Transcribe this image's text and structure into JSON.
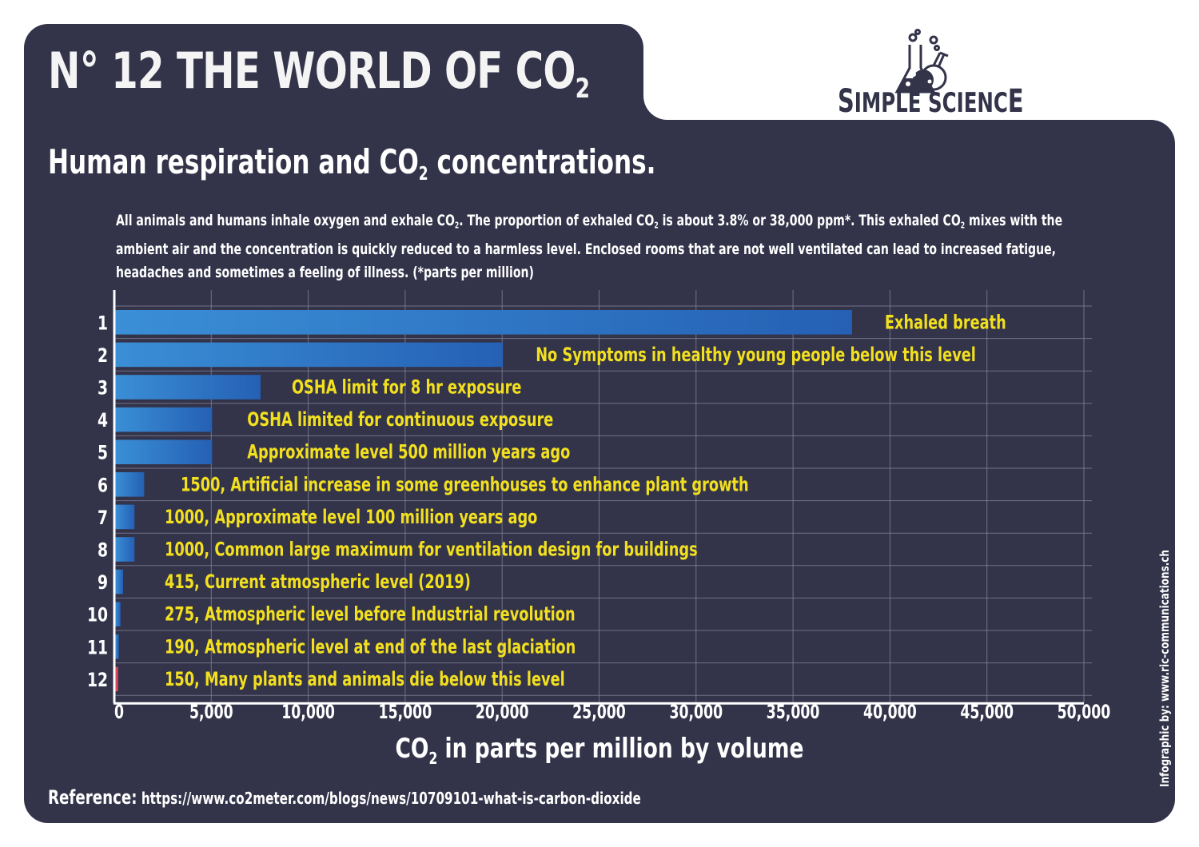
{
  "header": {
    "title_main": "N° 12  THE WORLD OF CO",
    "title_sub": "2",
    "subtitle_pre": "Human respiration and CO",
    "subtitle_sub": "2",
    "subtitle_post": " concentrations."
  },
  "logo": {
    "text_first_big": "S",
    "text_rest": "IMPLE SCIENC",
    "text_last_big": "E",
    "icon": "flasks-icon"
  },
  "description": {
    "part1": "All animals and humans inhale oxygen and exhale CO",
    "sub1": "2",
    "part2": ". The proportion of exhaled CO",
    "sub2": "2",
    "part3": " is about 3.8% or 38,000 ppm*. This exhaled CO",
    "sub3": "2",
    "part4": " mixes with the ambient air and the concentration is quickly reduced to a harmless level. Enclosed rooms that are not well ventilated can lead to increased fatigue, headaches and sometimes a feeling of illness. (*parts per million)"
  },
  "footer": {
    "reference_label": "Reference:",
    "reference_url": " https://www.co2meter.com/blogs/news/10709101-what-is-carbon-dioxide",
    "credit": "Infographic by: www.ric-communications.ch"
  },
  "colors": {
    "background": "#33334a",
    "bar_blue_light": "#3a8fd6",
    "bar_blue_dark": "#2560b4",
    "bar_red": "#d9485a",
    "label_yellow": "#f2e01f",
    "grid": "#8a8aa0",
    "axis": "#ffffff"
  },
  "chart_data": {
    "type": "bar",
    "orientation": "horizontal",
    "title": "Human respiration and CO2 concentrations.",
    "xlabel_pre": "CO",
    "xlabel_sub": "2",
    "xlabel_post": " in parts per million by volume",
    "xlim": [
      0,
      50000
    ],
    "xticks": [
      0,
      5000,
      10000,
      15000,
      20000,
      25000,
      30000,
      35000,
      40000,
      45000,
      50000
    ],
    "xtick_labels": [
      "0",
      "5,000",
      "10,000",
      "15,000",
      "20,000",
      "25,000",
      "30,000",
      "35,000",
      "40,000",
      "45,000",
      "50,000"
    ],
    "grid": true,
    "categories": [
      "1",
      "2",
      "3",
      "4",
      "5",
      "6",
      "7",
      "8",
      "9",
      "10",
      "11",
      "12"
    ],
    "values": [
      38000,
      20000,
      7500,
      5000,
      5000,
      1500,
      1000,
      1000,
      415,
      275,
      190,
      150
    ],
    "bar_colors": [
      "blue",
      "blue",
      "blue",
      "blue",
      "blue",
      "blue",
      "blue",
      "blue",
      "blue",
      "blue",
      "blue",
      "red"
    ],
    "annotations": [
      "Exhaled breath",
      "No Symptoms in healthy young people below this level",
      "OSHA limit for 8 hr exposure",
      "OSHA limited for continuous exposure",
      "Approximate level 500 million years ago",
      "1500, Artificial increase in some greenhouses to enhance plant growth",
      "1000, Approximate level 100 million years ago",
      "1000, Common large maximum for ventilation design for buildings",
      "415, Current atmospheric level (2019)",
      "275, Atmospheric level before Industrial revolution",
      "190, Atmospheric level at end of the last glaciation",
      "150, Many plants and animals die below this level"
    ]
  }
}
